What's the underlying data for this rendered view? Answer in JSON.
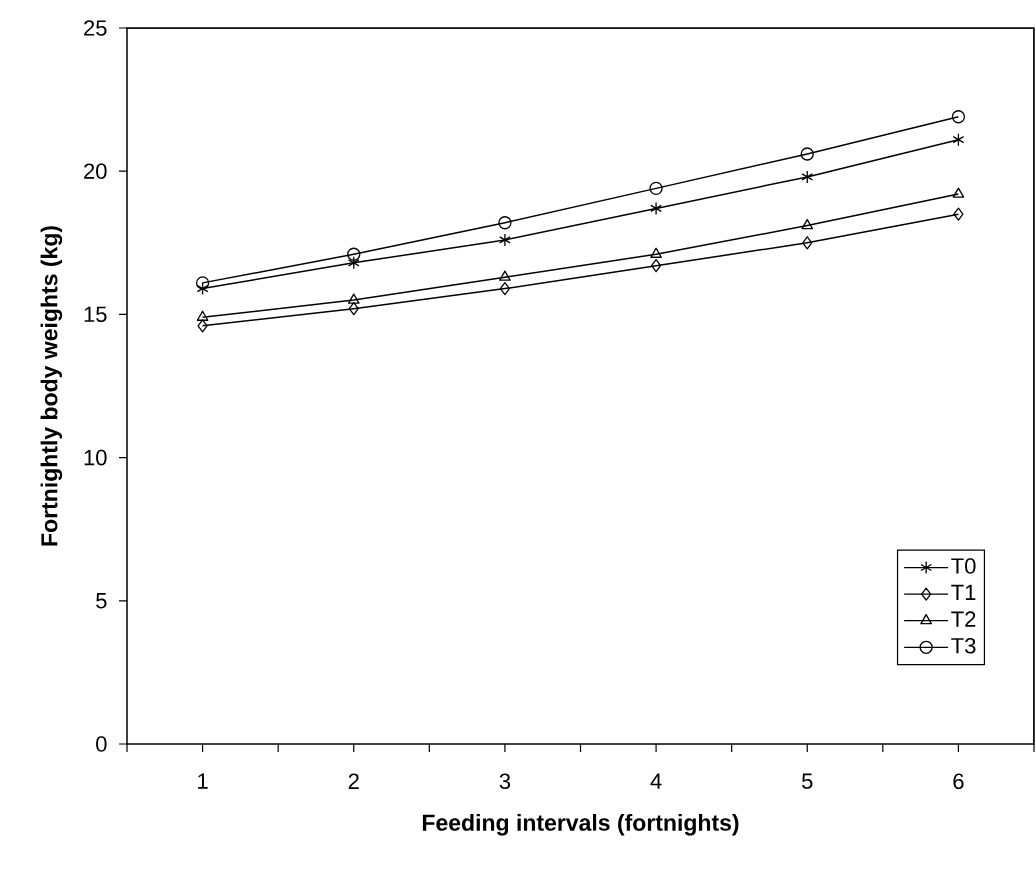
{
  "chart_data": {
    "type": "line",
    "xlabel": "Feeding intervals (fortnights)",
    "ylabel": "Fortnightly body weights (kg)",
    "categories": [
      "1",
      "2",
      "3",
      "4",
      "5",
      "6"
    ],
    "series": [
      {
        "name": "T0",
        "color": "#000000",
        "marker": "cross",
        "values": [
          15.9,
          16.8,
          17.6,
          18.7,
          19.8,
          21.1
        ]
      },
      {
        "name": "T1",
        "color": "#000000",
        "marker": "diamond",
        "values": [
          14.6,
          15.2,
          15.9,
          16.7,
          17.5,
          18.5
        ]
      },
      {
        "name": "T2",
        "color": "#000000",
        "marker": "triangle",
        "values": [
          14.9,
          15.5,
          16.3,
          17.1,
          18.1,
          19.2
        ]
      },
      {
        "name": "T3",
        "color": "#000000",
        "marker": "circle",
        "values": [
          16.1,
          17.1,
          18.2,
          19.4,
          20.6,
          21.9
        ]
      }
    ],
    "ylim": [
      0,
      25
    ],
    "yticks": [
      0,
      5,
      10,
      15,
      20,
      25
    ],
    "grid": false,
    "legend": "bottom right",
    "line_style": "solid"
  }
}
